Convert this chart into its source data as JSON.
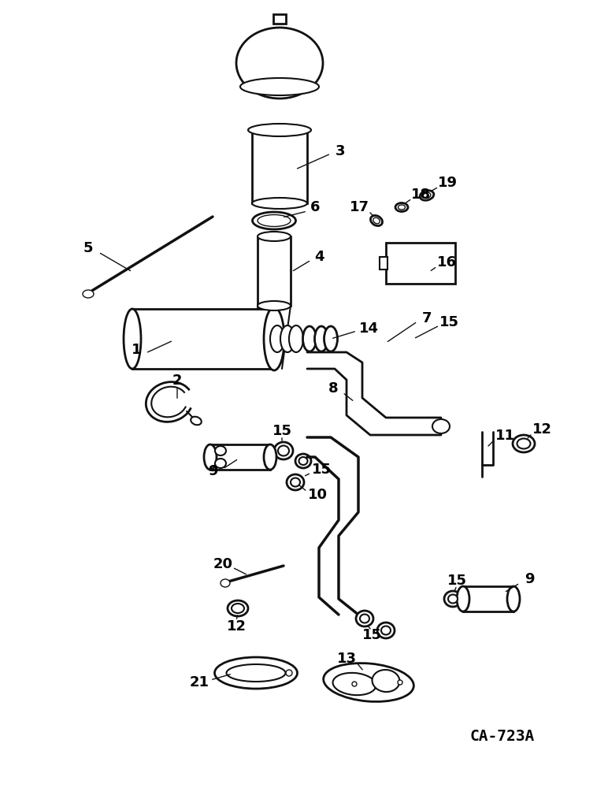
{
  "background_color": "#ffffff",
  "line_color": "#111111",
  "label_color": "#000000",
  "diagram_id": "CA-723A",
  "fig_width": 7.72,
  "fig_height": 10.0,
  "dpi": 100,
  "label_fontsize": 12,
  "id_fontsize": 14
}
